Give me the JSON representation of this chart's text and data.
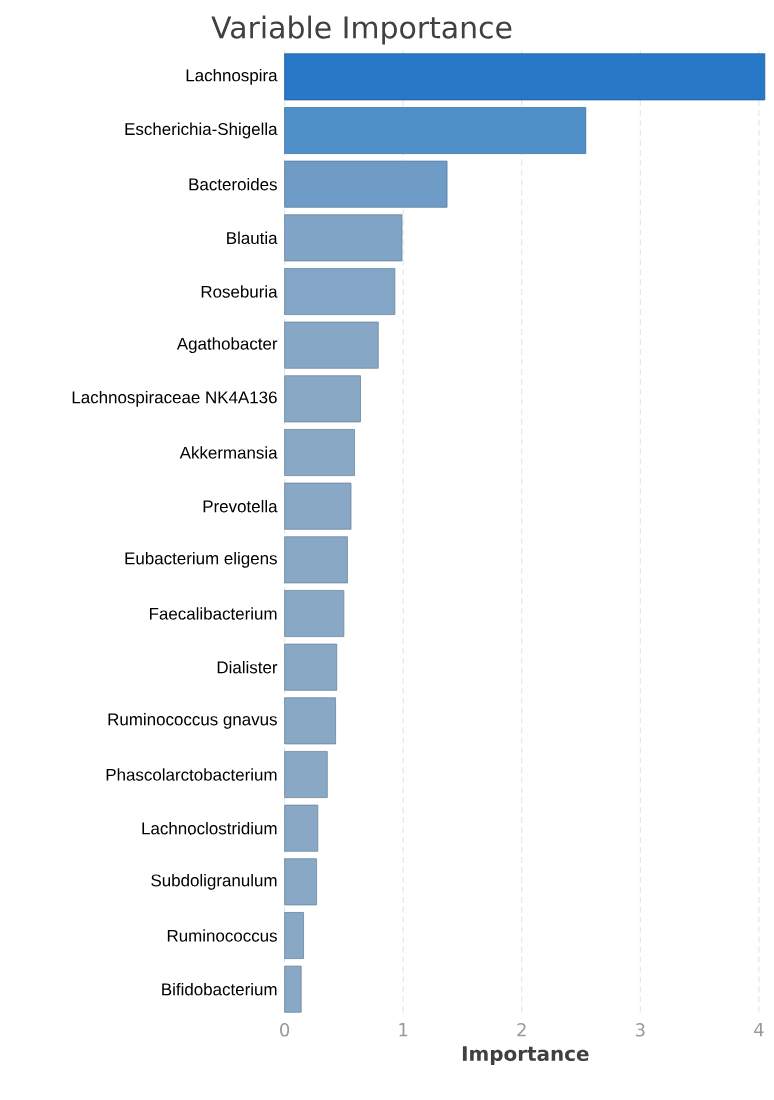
{
  "chart_data": {
    "type": "bar",
    "orientation": "horizontal",
    "title": "Variable Importance",
    "xlabel": "Importance",
    "categories": [
      "Lachnospira",
      "Escherichia-Shigella",
      "Bacteroides",
      "Blautia",
      "Roseburia",
      "Agathobacter",
      "Lachnospiraceae NK4A136",
      "Akkermansia",
      "Prevotella",
      "Eubacterium eligens",
      "Faecalibacterium",
      "Dialister",
      "Ruminococcus gnavus",
      "Phascolarctobacterium",
      "Lachnoclostridium",
      "Subdoligranulum",
      "Ruminococcus",
      "Bifidobacterium"
    ],
    "values": [
      4.05,
      2.54,
      1.37,
      0.99,
      0.93,
      0.79,
      0.64,
      0.59,
      0.56,
      0.53,
      0.5,
      0.44,
      0.43,
      0.36,
      0.28,
      0.27,
      0.16,
      0.14
    ],
    "colors": [
      "#2878c8",
      "#5090c8",
      "#6e9cc6",
      "#80a4c6",
      "#84a6c6",
      "#86a8c6",
      "#88a8c6",
      "#88a8c6",
      "#88a8c6",
      "#88a8c6",
      "#88a8c6",
      "#88a8c6",
      "#88a8c6",
      "#88a8c6",
      "#88a8c6",
      "#88a8c6",
      "#88a8c6",
      "#88a8c6"
    ],
    "xlim": [
      0,
      4.06
    ],
    "xticks": [
      0,
      1,
      2,
      3,
      4
    ],
    "grid": "x"
  }
}
